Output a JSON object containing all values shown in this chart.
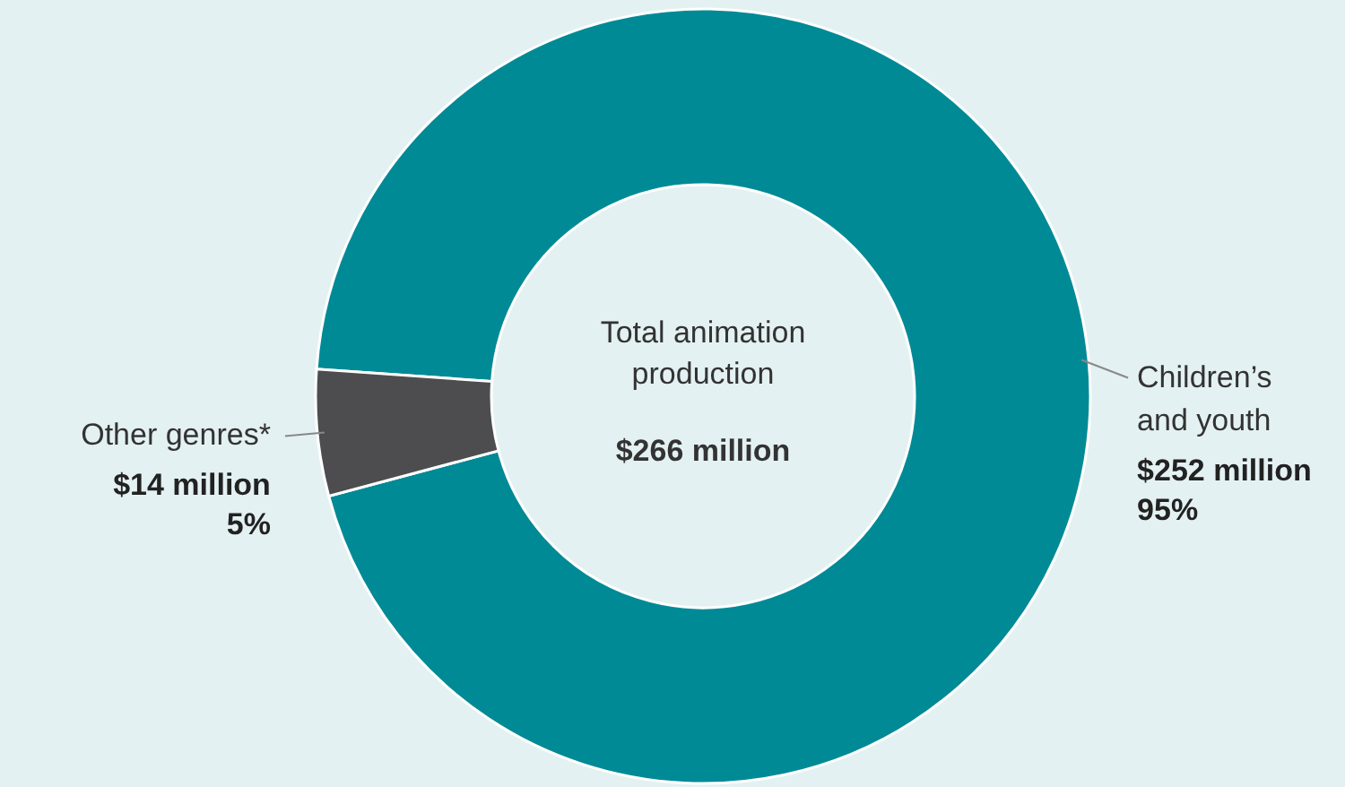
{
  "chart_data": {
    "type": "donut",
    "categories": [
      "Children’s and youth",
      "Other genres*"
    ],
    "values": [
      252,
      14
    ],
    "colors": [
      "#008a96",
      "#4d4d4f"
    ],
    "value_labels": [
      "$252 million",
      "$14 million"
    ],
    "annotations": [
      "Total animation production",
      "$266 million",
      "95%",
      "5%"
    ]
  }
}
